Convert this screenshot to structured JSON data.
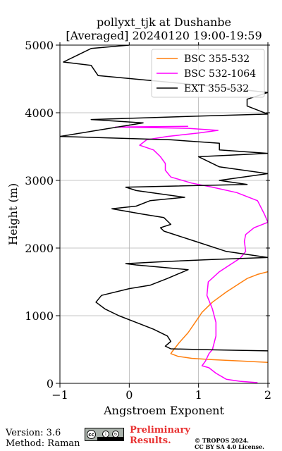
{
  "title_line1": "pollyxt_tjk at Dushanbe",
  "title_line2": "[Averaged] 20240120 19:00-19:59",
  "footer": {
    "version": "Version: 3.6",
    "method": "Method: Raman",
    "preliminary_line1": "Preliminary",
    "preliminary_line2": "Results.",
    "copyright_line1": "© TROPOS 2024.",
    "copyright_line2": "CC BY SA 4.0 License.",
    "license_badge_icon": "cc-by-sa-icon"
  },
  "chart_data": {
    "type": "line",
    "xlabel": "Angstroem Exponent",
    "ylabel": "Height (m)",
    "xlim": [
      -1,
      2
    ],
    "ylim": [
      0,
      5000
    ],
    "xticks": [
      -1,
      0,
      1,
      2
    ],
    "yticks": [
      0,
      1000,
      2000,
      3000,
      4000,
      5000
    ],
    "xtick_labels": [
      "−1",
      "0",
      "1",
      "2"
    ],
    "ytick_labels": [
      "0",
      "1000",
      "2000",
      "3000",
      "4000",
      "5000"
    ],
    "grid": true,
    "legend_position": "top-right",
    "series": [
      {
        "name": "BSC 355-532",
        "color": "#ff7f0e",
        "points": [
          [
            2.0,
            310
          ],
          [
            1.6,
            330
          ],
          [
            1.2,
            350
          ],
          [
            0.9,
            370
          ],
          [
            0.7,
            400
          ],
          [
            0.6,
            440
          ],
          [
            0.62,
            470
          ],
          [
            0.72,
            600
          ],
          [
            0.85,
            750
          ],
          [
            0.95,
            900
          ],
          [
            1.05,
            1050
          ],
          [
            1.2,
            1200
          ],
          [
            1.4,
            1350
          ],
          [
            1.55,
            1450
          ],
          [
            1.7,
            1550
          ],
          [
            1.85,
            1610
          ],
          [
            2.0,
            1650
          ]
        ]
      },
      {
        "name": "BSC 532-1064",
        "color": "#ff00ff",
        "points": [
          [
            1.85,
            10
          ],
          [
            1.6,
            30
          ],
          [
            1.4,
            60
          ],
          [
            1.25,
            150
          ],
          [
            1.15,
            230
          ],
          [
            1.05,
            260
          ],
          [
            1.1,
            330
          ],
          [
            1.15,
            440
          ],
          [
            1.2,
            500
          ],
          [
            1.25,
            700
          ],
          [
            1.25,
            900
          ],
          [
            1.2,
            1100
          ],
          [
            1.12,
            1300
          ],
          [
            1.14,
            1500
          ],
          [
            1.3,
            1650
          ],
          [
            1.45,
            1750
          ],
          [
            1.6,
            1850
          ],
          [
            1.68,
            1950
          ],
          [
            1.66,
            2100
          ],
          [
            1.68,
            2200
          ],
          [
            1.8,
            2300
          ],
          [
            2.0,
            2380
          ],
          [
            1.95,
            2500
          ],
          [
            1.85,
            2700
          ],
          [
            1.55,
            2820
          ],
          [
            1.2,
            2900
          ],
          [
            0.9,
            2960
          ],
          [
            0.6,
            3050
          ],
          [
            0.52,
            3150
          ],
          [
            0.52,
            3250
          ],
          [
            0.45,
            3350
          ],
          [
            0.35,
            3450
          ],
          [
            0.15,
            3520
          ],
          [
            0.25,
            3600
          ],
          [
            0.55,
            3650
          ],
          [
            1.0,
            3700
          ],
          [
            1.28,
            3740
          ],
          [
            0.85,
            3770
          ],
          [
            -0.2,
            3790
          ],
          [
            0.85,
            3800
          ]
        ]
      },
      {
        "name": "EXT 355-532",
        "color": "#000000",
        "points": [
          [
            2.0,
            480
          ],
          [
            1.5,
            490
          ],
          [
            1.0,
            500
          ],
          [
            0.6,
            510
          ],
          [
            0.52,
            550
          ],
          [
            0.6,
            620
          ],
          [
            0.55,
            700
          ],
          [
            0.35,
            800
          ],
          [
            0.1,
            900
          ],
          [
            -0.15,
            1000
          ],
          [
            -0.35,
            1100
          ],
          [
            -0.48,
            1200
          ],
          [
            -0.4,
            1300
          ],
          [
            0.0,
            1400
          ],
          [
            0.3,
            1450
          ],
          [
            0.55,
            1550
          ],
          [
            0.85,
            1680
          ],
          [
            0.1,
            1750
          ],
          [
            -0.05,
            1770
          ],
          [
            0.5,
            1800
          ],
          [
            1.2,
            1830
          ],
          [
            2.0,
            1860
          ],
          [
            1.4,
            1950
          ],
          [
            0.95,
            2100
          ],
          [
            0.5,
            2250
          ],
          [
            0.45,
            2300
          ],
          [
            0.6,
            2350
          ],
          [
            0.5,
            2450
          ],
          [
            0.2,
            2500
          ],
          [
            -0.25,
            2580
          ],
          [
            0.1,
            2620
          ],
          [
            0.3,
            2700
          ],
          [
            0.8,
            2750
          ],
          [
            0.1,
            2850
          ],
          [
            -0.05,
            2900
          ],
          [
            1.7,
            2940
          ],
          [
            1.3,
            3000
          ],
          [
            2.0,
            3100
          ],
          [
            1.3,
            3200
          ],
          [
            1.0,
            3350
          ],
          [
            2.0,
            3400
          ],
          [
            1.3,
            3450
          ],
          [
            1.3,
            3550
          ],
          [
            0.6,
            3600
          ],
          [
            -1.0,
            3650
          ],
          [
            0.2,
            3850
          ],
          [
            -0.55,
            3900
          ],
          [
            1.0,
            3950
          ],
          [
            2.0,
            3980
          ],
          [
            1.7,
            4100
          ],
          [
            1.7,
            4200
          ],
          [
            2.0,
            4300
          ],
          [
            1.1,
            4400
          ],
          [
            -0.45,
            4550
          ],
          [
            -0.55,
            4700
          ],
          [
            -0.95,
            4750
          ],
          [
            -0.75,
            4850
          ],
          [
            -0.55,
            4950
          ],
          [
            0.0,
            5000
          ]
        ]
      }
    ]
  }
}
